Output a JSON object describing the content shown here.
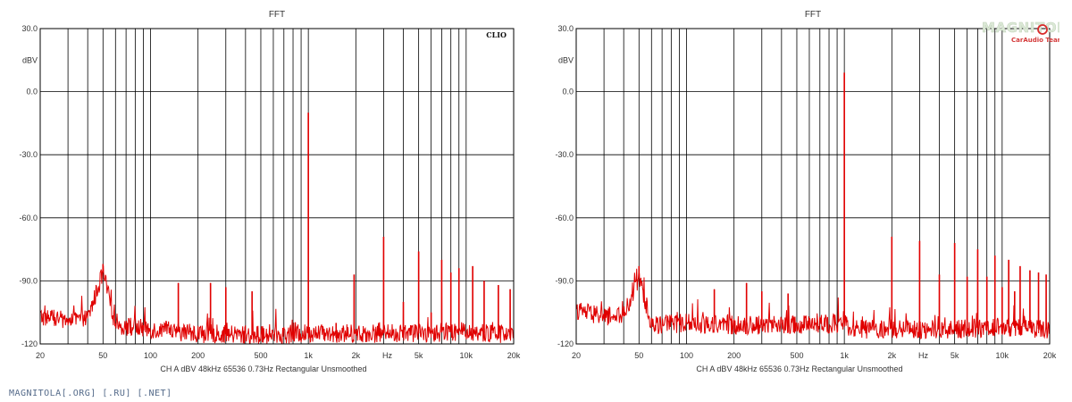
{
  "chart_data": [
    {
      "type": "line",
      "title": "FFT",
      "brand_label": "CLIO",
      "ylabel": "dBV",
      "xlabel": "Hz",
      "x_scale": "log",
      "xlim": [
        20,
        20000
      ],
      "ylim": [
        -120,
        30
      ],
      "grid": true,
      "y_ticks": [
        "30.0",
        "0.0",
        "-30.0",
        "-60.0",
        "-90.0",
        "-120"
      ],
      "x_ticks": [
        "20",
        "50",
        "100",
        "200",
        "500",
        "1k",
        "2k",
        "Hz",
        "5k",
        "10k",
        "20k"
      ],
      "info_line": [
        "CH A",
        "dBV",
        "48kHz",
        "65536",
        "0.73Hz",
        "Rectangular",
        "Unsmoothed"
      ],
      "series": [
        {
          "color": "#e00000",
          "noise_floor": [
            [
              20,
              -107
            ],
            [
              30,
              -109
            ],
            [
              40,
              -108
            ],
            [
              50,
              -86
            ],
            [
              60,
              -111
            ],
            [
              100,
              -113
            ],
            [
              200,
              -115
            ],
            [
              500,
              -116
            ],
            [
              1000,
              -115
            ],
            [
              2000,
              -115
            ],
            [
              5000,
              -115
            ],
            [
              10000,
              -114
            ],
            [
              20000,
              -116
            ]
          ],
          "peaks": [
            [
              50,
              -82
            ],
            [
              150,
              -91
            ],
            [
              240,
              -91
            ],
            [
              300,
              -93
            ],
            [
              440,
              -95
            ],
            [
              1000,
              -10
            ],
            [
              1500,
              -110
            ],
            [
              1950,
              -87
            ],
            [
              3000,
              -69
            ],
            [
              4000,
              -100
            ],
            [
              5000,
              -76
            ],
            [
              6000,
              -105
            ],
            [
              7000,
              -80
            ],
            [
              8000,
              -86
            ],
            [
              9000,
              -84
            ],
            [
              11000,
              -83
            ],
            [
              13000,
              -90
            ],
            [
              16000,
              -92
            ],
            [
              19000,
              -94
            ]
          ]
        }
      ]
    },
    {
      "type": "line",
      "title": "FFT",
      "ylabel": "dBV",
      "xlabel": "Hz",
      "x_scale": "log",
      "xlim": [
        20,
        20000
      ],
      "ylim": [
        -120,
        30
      ],
      "grid": true,
      "y_ticks": [
        "30.0",
        "0.0",
        "-30.0",
        "-60.0",
        "-90.0",
        "-120"
      ],
      "x_ticks": [
        "20",
        "50",
        "100",
        "200",
        "500",
        "1k",
        "2k",
        "Hz",
        "5k",
        "10k",
        "20k"
      ],
      "info_line": [
        "CH A",
        "dBV",
        "48kHz",
        "65536",
        "0.73Hz",
        "Rectangular",
        "Unsmoothed"
      ],
      "series": [
        {
          "color": "#e00000",
          "noise_floor": [
            [
              20,
              -104
            ],
            [
              30,
              -107
            ],
            [
              40,
              -107
            ],
            [
              50,
              -88
            ],
            [
              60,
              -111
            ],
            [
              100,
              -110
            ],
            [
              200,
              -111
            ],
            [
              500,
              -111
            ],
            [
              1000,
              -110
            ],
            [
              1100,
              -113
            ],
            [
              2000,
              -113
            ],
            [
              5000,
              -113
            ],
            [
              10000,
              -112
            ],
            [
              20000,
              -113
            ]
          ],
          "peaks": [
            [
              50,
              -83
            ],
            [
              150,
              -94
            ],
            [
              240,
              -91
            ],
            [
              300,
              -95
            ],
            [
              440,
              -96
            ],
            [
              1000,
              9
            ],
            [
              2000,
              -69
            ],
            [
              3000,
              -71
            ],
            [
              4000,
              -87
            ],
            [
              5000,
              -72
            ],
            [
              6000,
              -88
            ],
            [
              7000,
              -75
            ],
            [
              8000,
              -88
            ],
            [
              9000,
              -78
            ],
            [
              10000,
              -93
            ],
            [
              11000,
              -80
            ],
            [
              12000,
              -95
            ],
            [
              13000,
              -83
            ],
            [
              15000,
              -85
            ],
            [
              17000,
              -86
            ],
            [
              19000,
              -87
            ]
          ]
        }
      ]
    }
  ],
  "logo": {
    "text": "MAGNITOLA",
    "subtext": "CarAudio Team"
  },
  "footer": {
    "watermark": "MAGNITOLA[.ORG] [.RU] [.NET]"
  }
}
